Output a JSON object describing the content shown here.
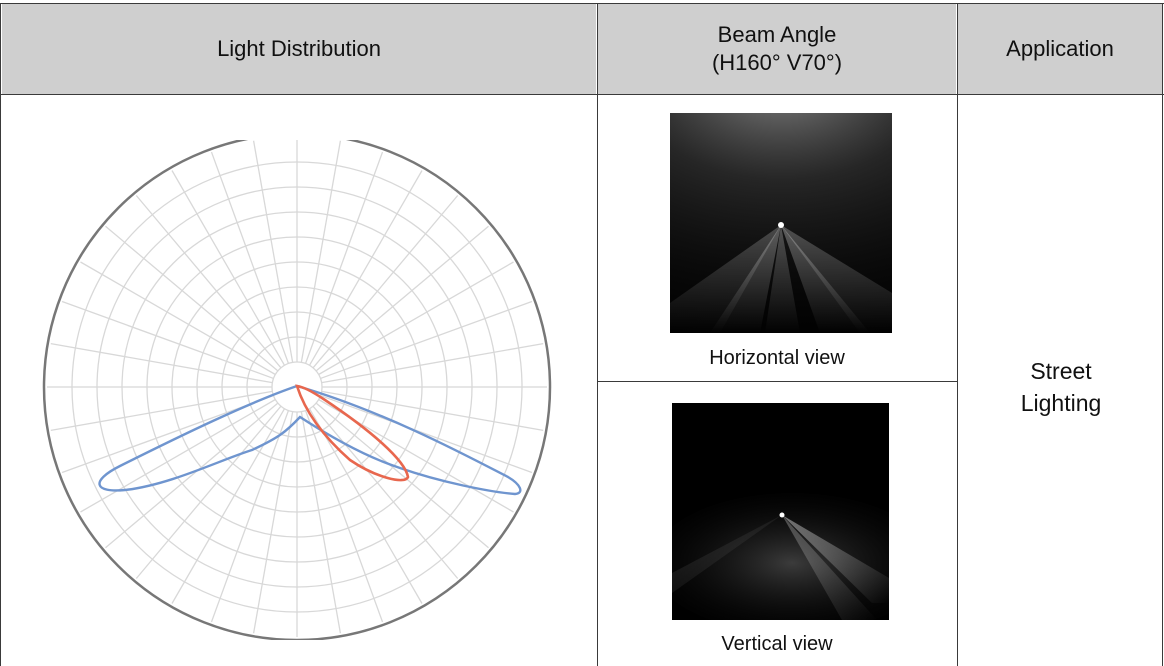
{
  "table": {
    "headers": {
      "light_distribution": "Light Distribution",
      "beam_angle_line1": "Beam Angle",
      "beam_angle_line2": "(H160° V70°)",
      "application": "Application"
    },
    "beam_views": {
      "horizontal_caption": "Horizontal view",
      "vertical_caption": "Vertical view"
    },
    "application": {
      "line1": "Street",
      "line2": "Lighting"
    }
  },
  "polar_diagram": {
    "colors": {
      "horizontal_curve": "#6f95cf",
      "vertical_curve": "#e8674e",
      "grid": "#d8d8d8",
      "frame": "#777777"
    }
  }
}
